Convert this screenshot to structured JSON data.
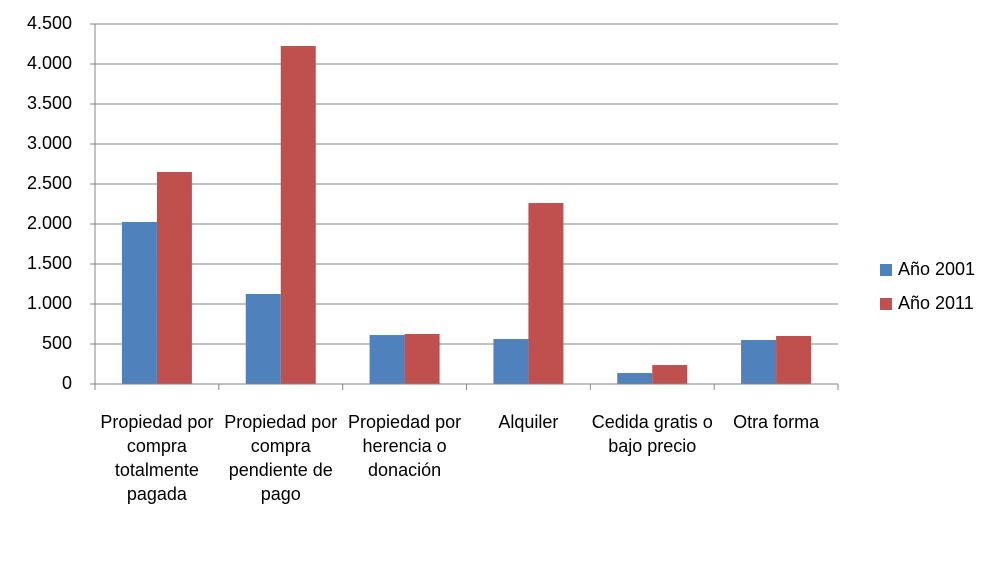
{
  "chart_data": {
    "type": "bar",
    "categories": [
      "Propiedad por compra totalmente pagada",
      "Propiedad por compra pendiente de pago",
      "Propiedad por herencia o donación",
      "Alquiler",
      "Cedida gratis o bajo precio",
      "Otra forma"
    ],
    "series": [
      {
        "name": "Año 2001",
        "color": "#4f81bd",
        "values": [
          2025,
          1125,
          612,
          562,
          137,
          550
        ]
      },
      {
        "name": "Año 2011",
        "color": "#c0504d",
        "values": [
          2650,
          4225,
          625,
          2262,
          237,
          600
        ]
      }
    ],
    "ylim": [
      0,
      4500
    ],
    "yticks": [
      0,
      500,
      {
        "value": 1000,
        "label": "1.000"
      },
      {
        "value": 1500,
        "label": "1.500"
      },
      {
        "value": 2000,
        "label": "2.000"
      },
      {
        "value": 2500,
        "label": "2.500"
      },
      {
        "value": 3000,
        "label": "3.000"
      },
      {
        "value": 3500,
        "label": "3.500"
      },
      {
        "value": 4000,
        "label": "4.000"
      },
      {
        "value": 4500,
        "label": "4.500"
      }
    ],
    "grid": true,
    "legend": "right"
  }
}
